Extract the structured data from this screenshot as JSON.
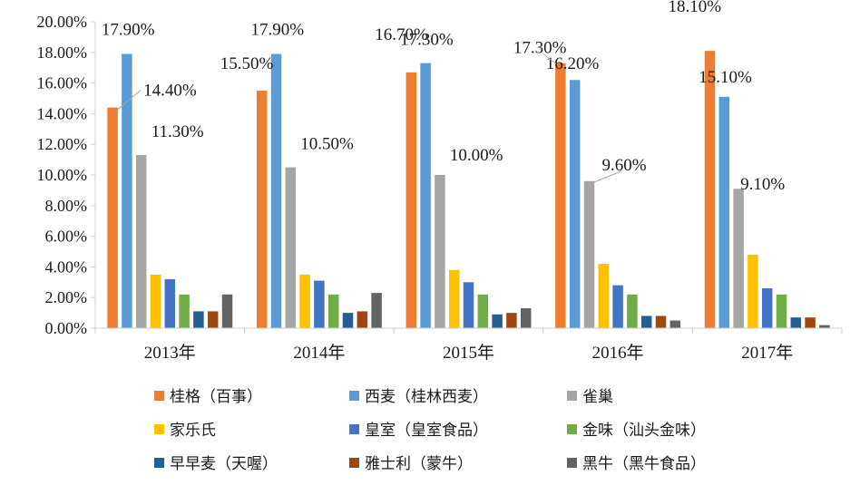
{
  "chart_data": {
    "type": "bar",
    "categories": [
      "2013年",
      "2014年",
      "2015年",
      "2016年",
      "2017年"
    ],
    "y_ticks": [
      "0.00%",
      "2.00%",
      "4.00%",
      "6.00%",
      "8.00%",
      "10.00%",
      "12.00%",
      "14.00%",
      "16.00%",
      "18.00%",
      "20.00%"
    ],
    "ylim": [
      0,
      20
    ],
    "unit": "%",
    "legend_position": "bottom",
    "grid": false,
    "series": [
      {
        "name": "桂格（百事）",
        "color": "#ED7D31",
        "values": [
          14.4,
          15.5,
          16.7,
          17.3,
          18.1
        ],
        "labels": [
          "14.40%",
          "15.50%",
          "16.70%",
          "17.30%",
          "18.10%"
        ]
      },
      {
        "name": "西麦（桂林西麦）",
        "color": "#5B9BD5",
        "values": [
          17.9,
          17.9,
          17.3,
          16.2,
          15.1
        ],
        "labels": [
          "17.90%",
          "17.90%",
          "17.30%",
          "16.20%",
          "15.10%"
        ]
      },
      {
        "name": "雀巢",
        "color": "#A5A5A5",
        "values": [
          11.3,
          10.5,
          10.0,
          9.6,
          9.1
        ],
        "labels": [
          "11.30%",
          "10.50%",
          "10.00%",
          "9.60%",
          "9.10%"
        ]
      },
      {
        "name": "家乐氏",
        "color": "#FFC000",
        "values": [
          3.5,
          3.5,
          3.8,
          4.2,
          4.8
        ]
      },
      {
        "name": "皇室（皇室食品）",
        "color": "#4472C4",
        "values": [
          3.2,
          3.1,
          3.0,
          2.8,
          2.6
        ]
      },
      {
        "name": "金味（汕头金味）",
        "color": "#70AD47",
        "values": [
          2.2,
          2.2,
          2.2,
          2.2,
          2.2
        ]
      },
      {
        "name": "早早麦（天喔）",
        "color": "#255E91",
        "values": [
          1.1,
          1.0,
          0.9,
          0.8,
          0.7
        ]
      },
      {
        "name": "雅士利（蒙牛）",
        "color": "#9E480E",
        "values": [
          1.1,
          1.1,
          1.0,
          0.8,
          0.7
        ]
      },
      {
        "name": "黑牛（黑牛食品）",
        "color": "#636363",
        "values": [
          2.2,
          2.3,
          1.3,
          0.5,
          0.2
        ]
      }
    ]
  }
}
